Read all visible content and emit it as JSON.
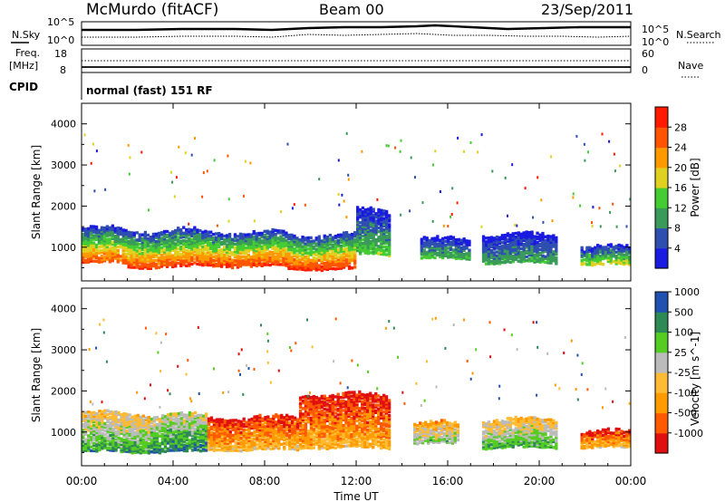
{
  "header": {
    "station": "McMurdo (fitACF)",
    "beam": "Beam 00",
    "date": "23/Sep/2011",
    "nsky_label": "N.Sky",
    "nsearch_label": "N.Search",
    "freq_label": "Freq.",
    "freq_unit": "[MHz]",
    "nave_label": "Nave",
    "cpid_label": "CPID",
    "cpid_value": "normal (fast) 151 RF",
    "noise_ticks": [
      "10^5",
      "10^0"
    ],
    "freq_ticks": [
      "18",
      "8"
    ],
    "nave_ticks": [
      "60",
      "0"
    ]
  },
  "colors": {
    "power_scale": [
      "#1a1ae0",
      "#2f4fb0",
      "#3a9a5a",
      "#44cc33",
      "#e0d020",
      "#ff9900",
      "#ff5500",
      "#ff1a00"
    ],
    "velocity_scale": [
      "#e01010",
      "#ff5a00",
      "#ff9a00",
      "#ffbb33",
      "#bbbbbb",
      "#55cc22",
      "#2e8a55",
      "#2050b0"
    ]
  },
  "chart_data": [
    {
      "type": "heatmap",
      "title": "",
      "xlabel": "Time UT",
      "ylabel": "Slant Range [km]",
      "x_ticks": [
        "00:00",
        "04:00",
        "08:00",
        "12:00",
        "16:00",
        "20:00",
        "00:00"
      ],
      "y_ticks": [
        1000,
        2000,
        3000,
        4000
      ],
      "xlim_hours": [
        0,
        24
      ],
      "ylim_km": [
        180,
        4500
      ],
      "colorbar": {
        "label": "Power [dB]",
        "ticks": [
          "4",
          "8",
          "12",
          "16",
          "20",
          "24",
          "28"
        ],
        "range": [
          0,
          30
        ]
      },
      "bands": [
        {
          "t0": 0.0,
          "t1": 2.0,
          "low": 600,
          "high": 1450,
          "level": 0.85
        },
        {
          "t0": 2.0,
          "t1": 5.0,
          "low": 500,
          "high": 1400,
          "level": 0.88
        },
        {
          "t0": 5.0,
          "t1": 9.0,
          "low": 520,
          "high": 1350,
          "level": 0.9
        },
        {
          "t0": 9.0,
          "t1": 12.0,
          "low": 450,
          "high": 1300,
          "level": 0.92
        },
        {
          "t0": 12.0,
          "t1": 13.5,
          "low": 800,
          "high": 1900,
          "level": 0.45
        },
        {
          "t0": 14.8,
          "t1": 17.0,
          "low": 700,
          "high": 1200,
          "level": 0.4
        },
        {
          "t0": 17.5,
          "t1": 20.8,
          "low": 600,
          "high": 1300,
          "level": 0.35
        },
        {
          "t0": 21.8,
          "t1": 24.0,
          "low": 550,
          "high": 1000,
          "level": 0.55
        }
      ]
    },
    {
      "type": "heatmap",
      "title": "",
      "xlabel": "Time UT",
      "ylabel": "Slant Range [km]",
      "x_ticks": [
        "00:00",
        "04:00",
        "08:00",
        "12:00",
        "16:00",
        "20:00",
        "00:00"
      ],
      "y_ticks": [
        1000,
        2000,
        3000,
        4000
      ],
      "xlim_hours": [
        0,
        24
      ],
      "ylim_km": [
        180,
        4500
      ],
      "colorbar": {
        "label": "Velocity [m s^-1]",
        "ticks": [
          "-1000",
          "-500",
          "-100",
          "-25",
          "25",
          "100",
          "500",
          "1000"
        ],
        "range": [
          -1200,
          1200
        ]
      },
      "bands": [
        {
          "t0": 0.0,
          "t1": 3.0,
          "low": 500,
          "high": 1450,
          "level": 0.6
        },
        {
          "t0": 3.0,
          "t1": 5.5,
          "low": 500,
          "high": 1400,
          "level": 0.68
        },
        {
          "t0": 5.5,
          "t1": 9.5,
          "low": 550,
          "high": 1350,
          "level": 0.25
        },
        {
          "t0": 9.5,
          "t1": 13.5,
          "low": 600,
          "high": 1900,
          "level": 0.22
        },
        {
          "t0": 14.5,
          "t1": 16.5,
          "low": 700,
          "high": 1200,
          "level": 0.5
        },
        {
          "t0": 17.5,
          "t1": 20.8,
          "low": 600,
          "high": 1300,
          "level": 0.58
        },
        {
          "t0": 21.8,
          "t1": 24.0,
          "low": 600,
          "high": 1000,
          "level": 0.24
        }
      ]
    }
  ]
}
